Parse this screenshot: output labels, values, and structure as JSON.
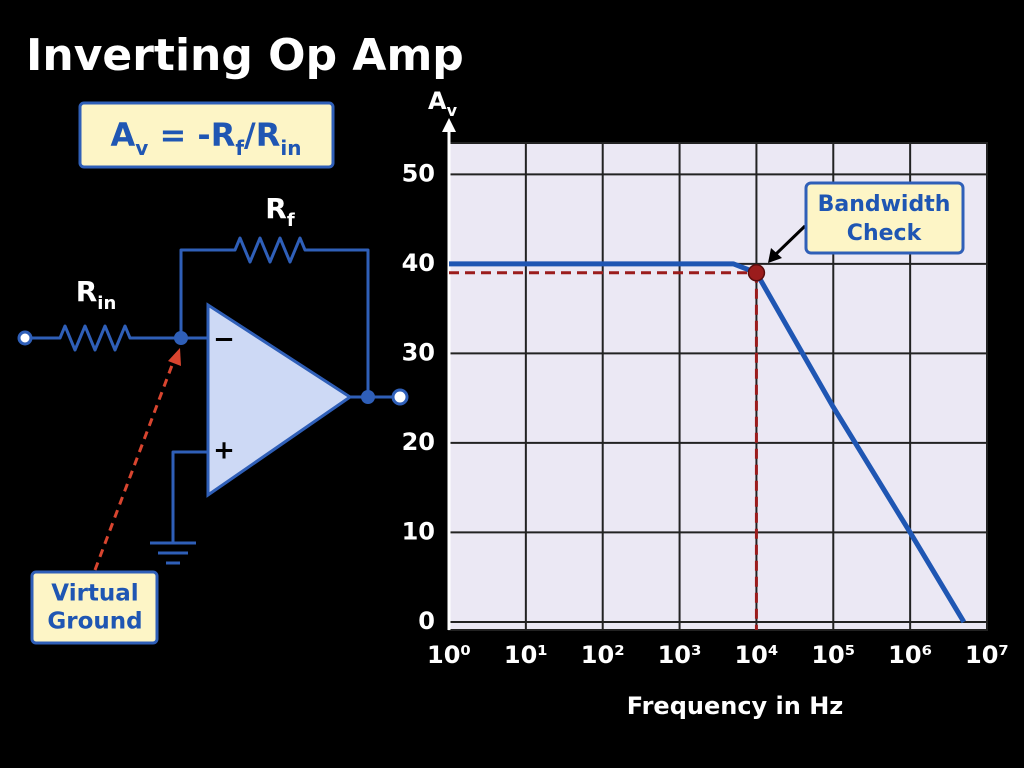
{
  "title": "Inverting Op Amp",
  "formula": [
    "A",
    "v",
    " = -R",
    "f",
    "/R",
    "in"
  ],
  "circuit": {
    "rf": [
      "R",
      "f"
    ],
    "rin": [
      "R",
      "in"
    ],
    "minus": "−",
    "plus": "+",
    "note": [
      "Virtual",
      "Ground"
    ]
  },
  "chart_data": {
    "type": "line",
    "y_label": [
      "A",
      "v"
    ],
    "x_label": "Frequency in Hz",
    "xscale": "log",
    "xlim": [
      1,
      10000000
    ],
    "xticks": [
      {
        "value": 1,
        "label": "10⁰"
      },
      {
        "value": 10,
        "label": "10¹"
      },
      {
        "value": 100,
        "label": "10²"
      },
      {
        "value": 1000,
        "label": "10³"
      },
      {
        "value": 10000,
        "label": "10⁴"
      },
      {
        "value": 100000,
        "label": "10⁵"
      },
      {
        "value": 1000000,
        "label": "10⁶"
      },
      {
        "value": 10000000,
        "label": "10⁷"
      }
    ],
    "ylim": [
      -0.9,
      53.5
    ],
    "yticks": [
      0,
      10,
      20,
      30,
      40,
      50
    ],
    "grid": true,
    "series": [
      {
        "color": "#1f56b3",
        "x": [
          1,
          1000,
          5000,
          10000,
          100000,
          1000000,
          5000000
        ],
        "values": [
          40,
          40,
          40,
          39,
          24,
          10,
          0
        ]
      }
    ],
    "annotation": {
      "x": 10000,
      "y": 39,
      "color": "#9b1c1c",
      "label": [
        "Bandwidth",
        "Check"
      ]
    }
  }
}
